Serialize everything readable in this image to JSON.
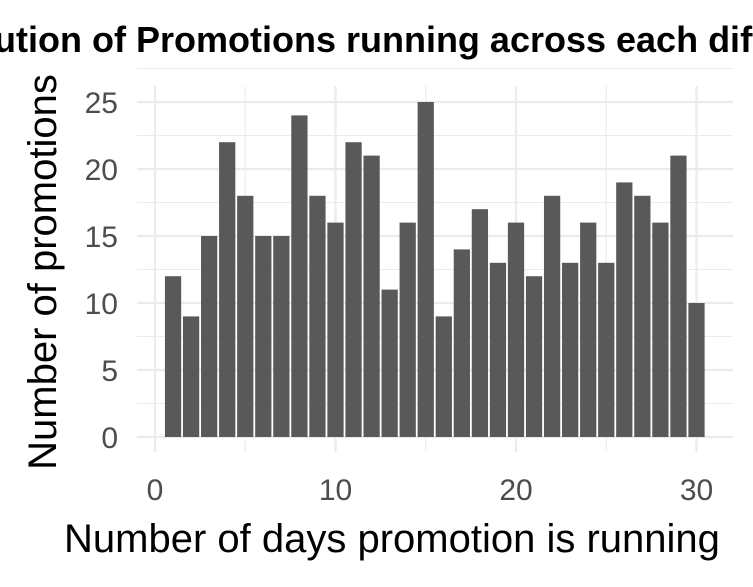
{
  "chart_data": {
    "type": "bar",
    "title": "Distribution of Promotions running across each different days",
    "xlabel": "Number of days promotion is running",
    "ylabel": "Number of promotions",
    "x": [
      1,
      2,
      3,
      4,
      5,
      6,
      7,
      8,
      9,
      10,
      11,
      12,
      13,
      14,
      15,
      16,
      17,
      18,
      19,
      20,
      21,
      22,
      23,
      24,
      25,
      26,
      27,
      28,
      29,
      30
    ],
    "values": [
      12,
      9,
      15,
      22,
      18,
      15,
      15,
      24,
      18,
      16,
      22,
      21,
      11,
      16,
      25,
      9,
      14,
      17,
      13,
      16,
      12,
      18,
      13,
      16,
      13,
      19,
      18,
      16,
      21,
      10
    ],
    "xlim": [
      0,
      31
    ],
    "ylim": [
      0,
      25
    ],
    "xticks": [
      "0",
      "10",
      "20",
      "30"
    ],
    "yticks": [
      "0",
      "5",
      "10",
      "15",
      "20",
      "25"
    ],
    "bar_color": "#595959",
    "grid": true,
    "legend": "none",
    "theme": "minimal"
  }
}
